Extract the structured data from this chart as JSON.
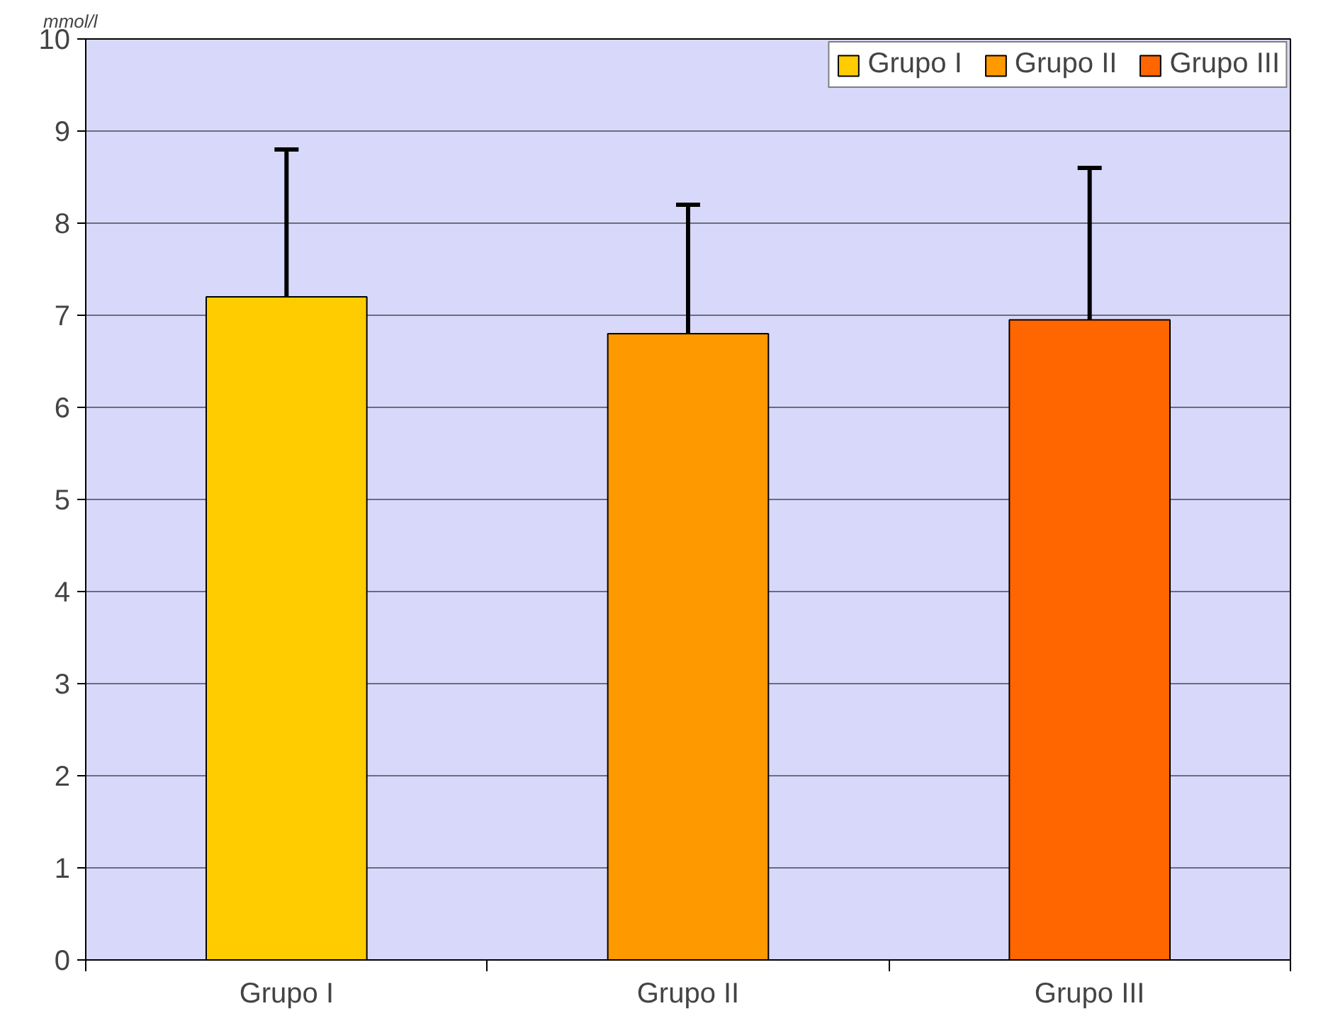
{
  "chart_data": {
    "type": "bar",
    "ylabel": "mmol/l",
    "categories": [
      "Grupo I",
      "Grupo II",
      "Grupo III"
    ],
    "series": [
      {
        "name": "Grupo I",
        "color": "#ffcc00",
        "values": [
          7.2,
          null,
          null
        ],
        "errors": [
          [
            7.2,
            8.8
          ],
          null,
          null
        ]
      },
      {
        "name": "Grupo II",
        "color": "#ff9900",
        "values": [
          null,
          6.8,
          null
        ],
        "errors": [
          null,
          [
            6.8,
            8.2
          ],
          null
        ]
      },
      {
        "name": "Grupo III",
        "color": "#ff6600",
        "values": [
          null,
          null,
          6.95
        ],
        "errors": [
          null,
          null,
          [
            6.95,
            8.6
          ]
        ]
      }
    ],
    "ylim": [
      0,
      10
    ],
    "yticks": [
      0,
      1,
      2,
      3,
      4,
      5,
      6,
      7,
      8,
      9,
      10
    ],
    "grid": "y",
    "legend": "top right"
  }
}
